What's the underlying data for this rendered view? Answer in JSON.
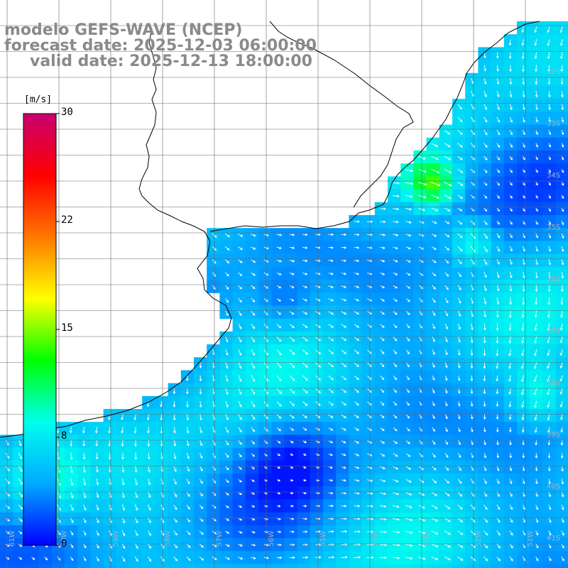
{
  "title": {
    "model": "modelo GEFS-WAVE (NCEP)",
    "forecast": "forecast date: 2025-12-03 06:00:00",
    "valid": "valid date: 2025-12-13 18:00:00"
  },
  "colorbar": {
    "unit": "[m/s]",
    "ticks": [
      "30",
      "22",
      "15",
      "8",
      "0"
    ],
    "stops": [
      "#0000ff",
      "#00aaff",
      "#00ffee",
      "#00ff00",
      "#ffff00",
      "#ff7700",
      "#ff0000",
      "#c80070"
    ]
  },
  "lat_labels": [
    "32S",
    "33S",
    "34S",
    "35S",
    "36S",
    "37S",
    "38S",
    "39S",
    "40S",
    "41S"
  ],
  "lon_labels": [
    "61W",
    "60W",
    "59W",
    "58W",
    "57W",
    "56W",
    "55W",
    "54W",
    "53W",
    "52W",
    "51W"
  ],
  "colors": {
    "land": "#ffffff",
    "grid": "#666666",
    "coast": "#000000",
    "arrow": "#ffffff"
  }
}
